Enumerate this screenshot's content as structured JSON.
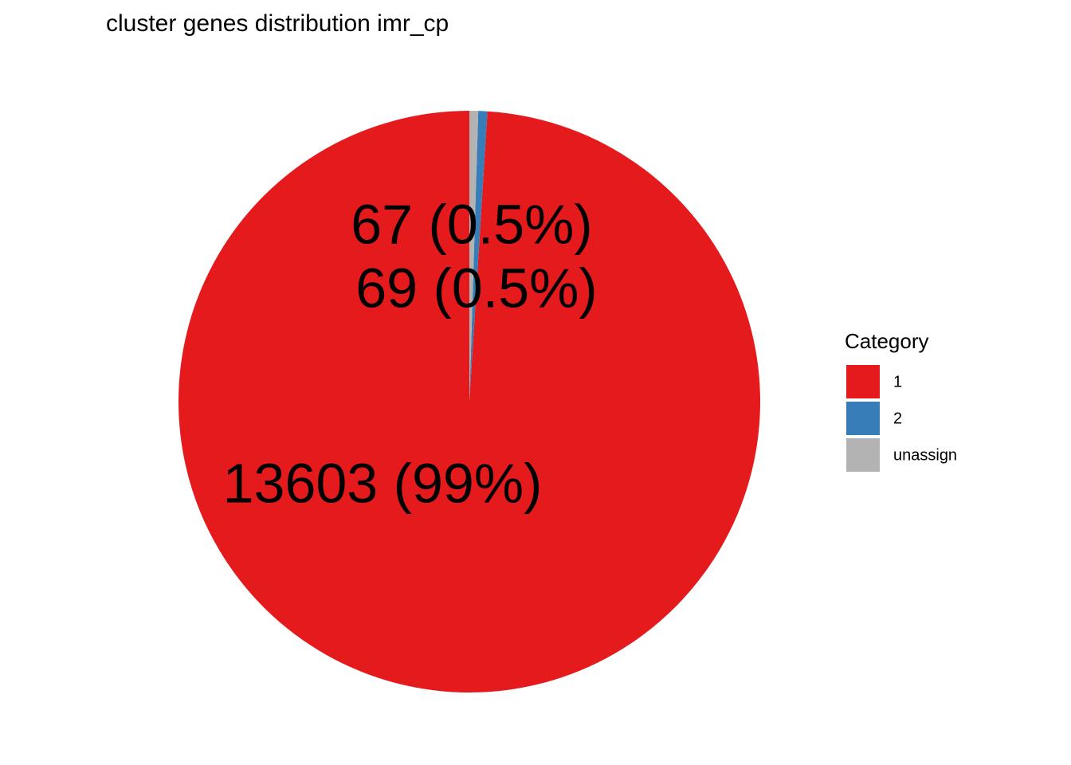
{
  "chart_data": {
    "type": "pie",
    "title": "cluster genes distribution imr_cp",
    "categories": [
      "1",
      "2",
      "unassign"
    ],
    "values": [
      13603,
      69,
      67
    ],
    "value_labels": [
      "13603 (99%)",
      "69 (0.5%)",
      "67 (0.5%)"
    ],
    "colors": [
      "#E41A1C",
      "#377EB8",
      "#B3B3B3"
    ],
    "legend_title": "Category",
    "legend": "right"
  }
}
